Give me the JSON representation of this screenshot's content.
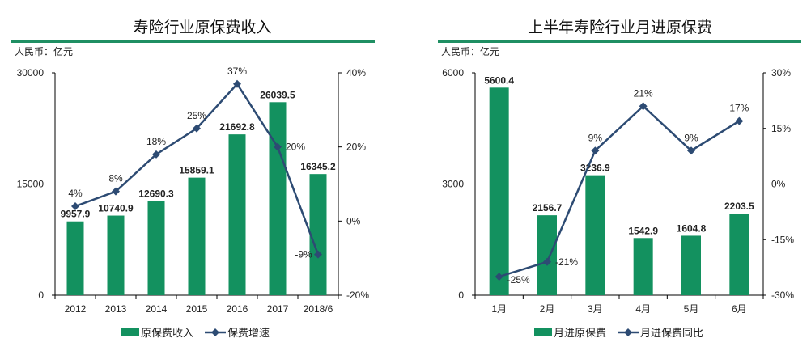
{
  "colors": {
    "bar": "#13915f",
    "line": "#2d4b73",
    "rule": "#1f8f63",
    "text": "#222222"
  },
  "chart_data": [
    {
      "type": "bar+line",
      "title": "寿险行业原保费收入",
      "unit": "人民币：亿元",
      "categories": [
        "2012",
        "2013",
        "2014",
        "2015",
        "2016",
        "2017",
        "2018/6"
      ],
      "series": [
        {
          "name": "原保费收入",
          "kind": "bar",
          "axis": "left",
          "values": [
            9957.9,
            10740.9,
            12690.3,
            15859.1,
            21692.8,
            26039.5,
            16345.2
          ],
          "labels": [
            "9957.9",
            "10740.9",
            "12690.3",
            "15859.1",
            "21692.8",
            "26039.5",
            "16345.2"
          ]
        },
        {
          "name": "保费增速",
          "kind": "line",
          "axis": "right",
          "values": [
            4,
            8,
            18,
            25,
            37,
            20,
            -9
          ],
          "labels": [
            "4%",
            "8%",
            "18%",
            "25%",
            "37%",
            "20%",
            "-9%"
          ]
        }
      ],
      "left_axis": {
        "ylim": [
          0,
          30000
        ],
        "ticks": [
          "0",
          "15000",
          "30000"
        ],
        "tick_values": [
          0,
          15000,
          30000
        ]
      },
      "right_axis": {
        "ylim": [
          -20,
          40
        ],
        "ticks": [
          "-20%",
          "0%",
          "20%",
          "40%"
        ],
        "tick_values": [
          -20,
          0,
          20,
          40
        ]
      },
      "legend": "bottom"
    },
    {
      "type": "bar+line",
      "title": "上半年寿险行业月进原保费",
      "unit": "人民币：亿元",
      "categories": [
        "1月",
        "2月",
        "3月",
        "4月",
        "5月",
        "6月"
      ],
      "series": [
        {
          "name": "月进原保费",
          "kind": "bar",
          "axis": "left",
          "values": [
            5600.4,
            2156.7,
            3236.9,
            1542.9,
            1604.8,
            2203.5
          ],
          "labels": [
            "5600.4",
            "2156.7",
            "3236.9",
            "1542.9",
            "1604.8",
            "2203.5"
          ]
        },
        {
          "name": "月进保费同比",
          "kind": "line",
          "axis": "right",
          "values": [
            -25,
            -21,
            9,
            21,
            9,
            17
          ],
          "labels": [
            "-25%",
            "-21%",
            "9%",
            "21%",
            "9%",
            "17%"
          ]
        }
      ],
      "left_axis": {
        "ylim": [
          0,
          6000
        ],
        "ticks": [
          "0",
          "3000",
          "6000"
        ],
        "tick_values": [
          0,
          3000,
          6000
        ]
      },
      "right_axis": {
        "ylim": [
          -30,
          30
        ],
        "ticks": [
          "-30%",
          "-15%",
          "0%",
          "15%",
          "30%"
        ],
        "tick_values": [
          -30,
          -15,
          0,
          15,
          30
        ]
      },
      "legend": "bottom"
    }
  ]
}
